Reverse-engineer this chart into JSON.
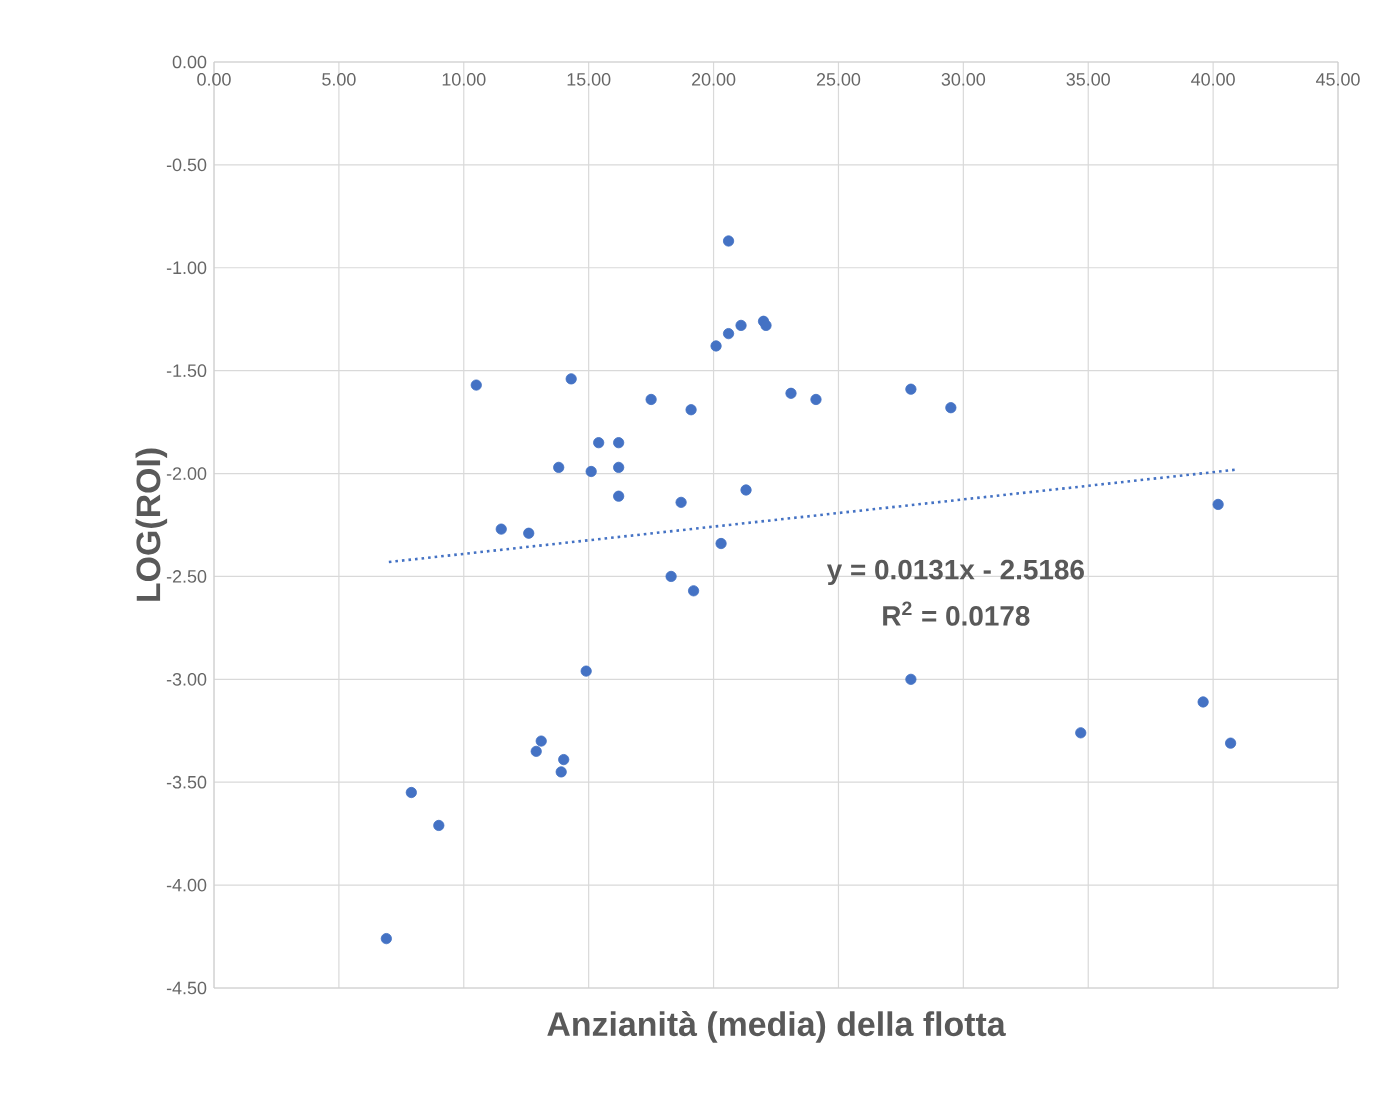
{
  "chart_data": {
    "type": "scatter",
    "xlabel": "Anzianità (media) della flotta",
    "ylabel": "LOG(ROI)",
    "xlim": [
      0,
      45
    ],
    "ylim": [
      -4.5,
      0
    ],
    "xticks": [
      {
        "value": 0,
        "label": "0.00"
      },
      {
        "value": 5,
        "label": "5.00"
      },
      {
        "value": 10,
        "label": "10.00"
      },
      {
        "value": 15,
        "label": "15.00"
      },
      {
        "value": 20,
        "label": "20.00"
      },
      {
        "value": 25,
        "label": "25.00"
      },
      {
        "value": 30,
        "label": "30.00"
      },
      {
        "value": 35,
        "label": "35.00"
      },
      {
        "value": 40,
        "label": "40.00"
      },
      {
        "value": 45,
        "label": "45.00"
      }
    ],
    "yticks": [
      {
        "value": 0,
        "label": "0.00"
      },
      {
        "value": -0.5,
        "label": "-0.50"
      },
      {
        "value": -1,
        "label": "-1.00"
      },
      {
        "value": -1.5,
        "label": "-1.50"
      },
      {
        "value": -2,
        "label": "-2.00"
      },
      {
        "value": -2.5,
        "label": "-2.50"
      },
      {
        "value": -3,
        "label": "-3.00"
      },
      {
        "value": -3.5,
        "label": "-3.50"
      },
      {
        "value": -4,
        "label": "-4.00"
      },
      {
        "value": -4.5,
        "label": "-4.50"
      }
    ],
    "grid": true,
    "marker": "circle",
    "annotations": [
      "y = 0.0131x - 2.5186",
      "R$^{2}$ = 0.0178"
    ],
    "series": [
      {
        "color": "#4472c4",
        "x": [
          6.9,
          7.9,
          9.0,
          10.5,
          11.5,
          12.6,
          12.9,
          13.1,
          13.9,
          14.0,
          13.8,
          14.3,
          14.9,
          15.1,
          15.4,
          16.2,
          16.2,
          16.2,
          17.5,
          18.3,
          18.7,
          19.1,
          19.2,
          20.1,
          20.3,
          20.6,
          20.6,
          21.1,
          21.3,
          22.0,
          22.1,
          23.1,
          24.1,
          27.9,
          27.9,
          29.5,
          34.7,
          39.6,
          40.2,
          40.7
        ],
        "values": [
          -4.26,
          -3.55,
          -3.71,
          -1.57,
          -2.27,
          -2.29,
          -3.35,
          -3.3,
          -3.45,
          -3.39,
          -1.97,
          -1.54,
          -2.96,
          -1.99,
          -1.85,
          -1.85,
          -1.97,
          -2.11,
          -1.64,
          -2.5,
          -2.14,
          -1.69,
          -2.57,
          -1.38,
          -2.34,
          -1.32,
          -0.87,
          -1.28,
          -2.08,
          -1.26,
          -1.28,
          -1.61,
          -1.64,
          -3.0,
          -1.59,
          -1.68,
          -3.26,
          -3.11,
          -2.15,
          -3.31
        ]
      },
      {
        "type": "line",
        "line_style": "dotted",
        "marker": "none",
        "color": "#4472c4",
        "x": [
          7,
          41
        ],
        "values": [
          -2.43,
          -1.98
        ]
      }
    ]
  }
}
